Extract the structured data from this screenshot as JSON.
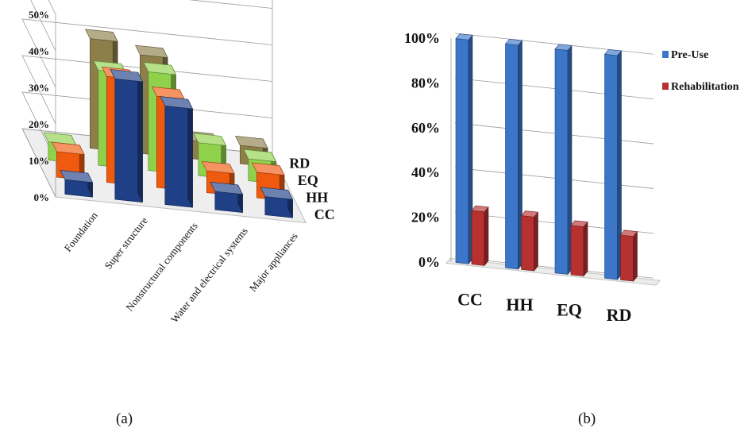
{
  "captions": {
    "a": "(a)",
    "b": "(b)"
  },
  "chart_data": [
    {
      "type": "bar",
      "title": "",
      "zlabels": [
        "0%",
        "10%",
        "20%",
        "30%",
        "40%",
        "50%"
      ],
      "ylim": [
        0,
        50
      ],
      "categories": [
        "Foundation",
        "Super structure",
        "Nonstructural components",
        "Water and electrical systems",
        "Major appliances"
      ],
      "series": [
        {
          "name": "CC",
          "color": "#1f3f86",
          "values": [
            4,
            33,
            27,
            5,
            5
          ]
        },
        {
          "name": "HH",
          "color": "#ef5a0e",
          "values": [
            7,
            29,
            25,
            6,
            7
          ]
        },
        {
          "name": "EQ",
          "color": "#8fd14a",
          "values": [
            5,
            26,
            27,
            9,
            6
          ]
        },
        {
          "name": "RD",
          "color": "#8c7f4a",
          "values": [
            0,
            30,
            27,
            5,
            5
          ]
        }
      ]
    },
    {
      "type": "bar",
      "title": "",
      "categories": [
        "CC",
        "HH",
        "EQ",
        "RD"
      ],
      "yticks": [
        "0%",
        "20%",
        "40%",
        "60%",
        "80%",
        "100%"
      ],
      "ylim": [
        0,
        100
      ],
      "legend": "right",
      "series": [
        {
          "name": "Pre-Use",
          "color": "#3b76c9",
          "values": [
            100,
            100,
            100,
            100
          ]
        },
        {
          "name": "Rehabilitation",
          "color": "#b83131",
          "values": [
            24,
            24,
            22,
            20
          ]
        }
      ]
    }
  ]
}
